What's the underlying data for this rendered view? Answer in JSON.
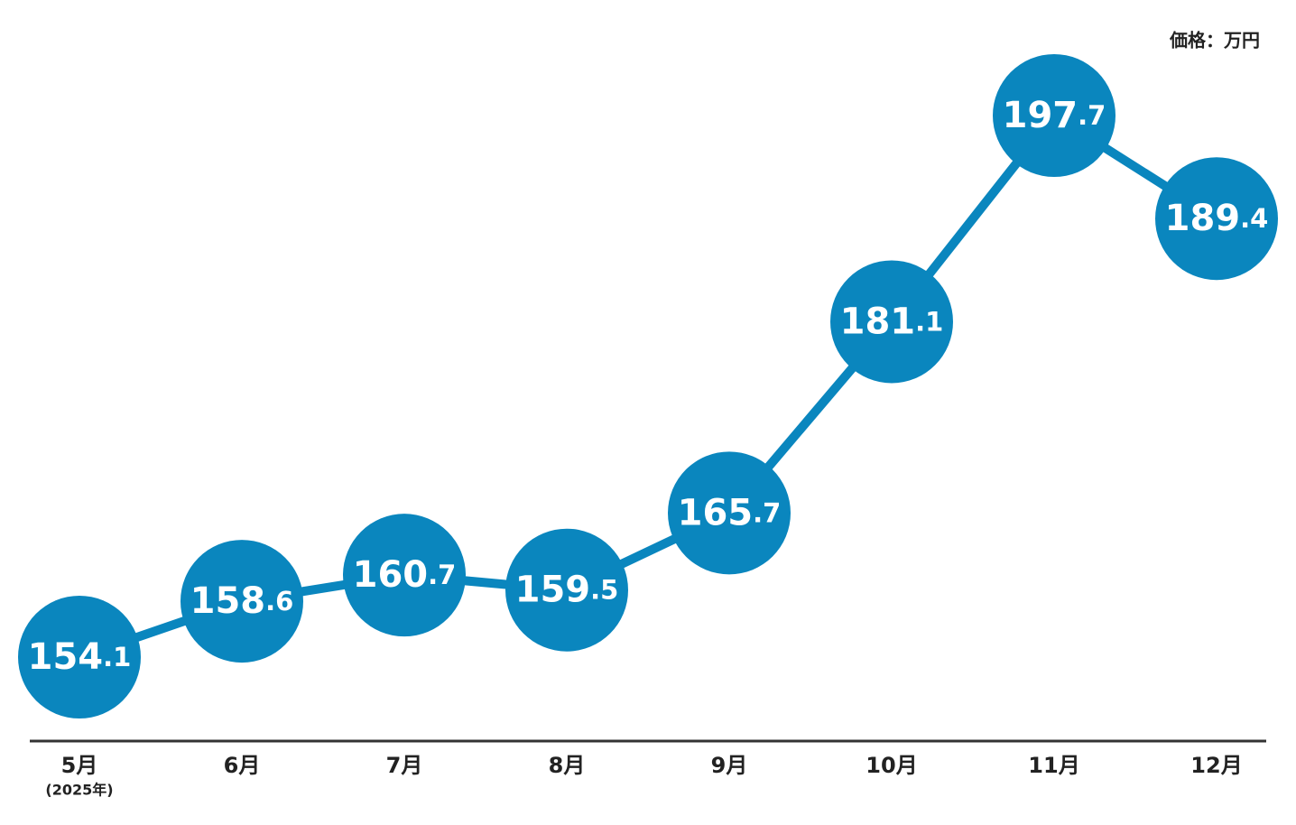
{
  "chart_data": {
    "type": "line",
    "unit_label": "価格：万円",
    "categories": [
      "5月",
      "6月",
      "7月",
      "8月",
      "9月",
      "10月",
      "11月",
      "12月"
    ],
    "first_category_note": "(2025年)",
    "values": [
      154.1,
      158.6,
      160.7,
      159.5,
      165.7,
      181.1,
      197.7,
      189.4
    ],
    "color": "#0a86be"
  }
}
